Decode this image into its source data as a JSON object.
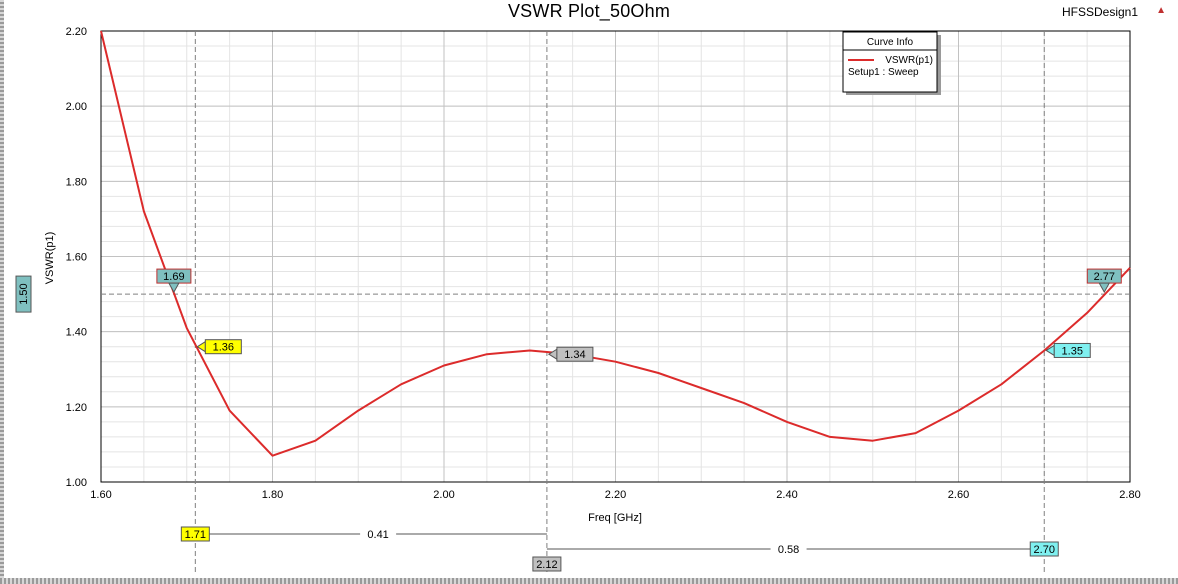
{
  "header": {
    "title": "VSWR Plot_50Ohm",
    "design": "HFSSDesign1"
  },
  "legend": {
    "title": "Curve Info",
    "entry": "VSWR(p1)",
    "sub": "Setup1 : Sweep"
  },
  "chart_data": {
    "type": "line",
    "title": "VSWR Plot_50Ohm",
    "xlabel": "Freq [GHz]",
    "ylabel": "VSWR(p1)",
    "xlim": [
      1.6,
      2.8
    ],
    "ylim": [
      1.0,
      2.2
    ],
    "x_ticks": [
      "1.60",
      "1.80",
      "2.00",
      "2.20",
      "2.40",
      "2.60",
      "2.80"
    ],
    "y_ticks": [
      "1.00",
      "1.20",
      "1.40",
      "1.60",
      "1.80",
      "2.00",
      "2.20"
    ],
    "grid": true,
    "legend_position": "top-right",
    "series": [
      {
        "name": "VSWR(p1)",
        "color": "#dc2b2b",
        "x": [
          1.6,
          1.65,
          1.7,
          1.75,
          1.8,
          1.85,
          1.9,
          1.95,
          2.0,
          2.05,
          2.1,
          2.15,
          2.2,
          2.25,
          2.3,
          2.35,
          2.4,
          2.45,
          2.5,
          2.55,
          2.6,
          2.65,
          2.7,
          2.75,
          2.8
        ],
        "y": [
          2.2,
          1.72,
          1.41,
          1.19,
          1.07,
          1.11,
          1.19,
          1.26,
          1.31,
          1.34,
          1.35,
          1.34,
          1.32,
          1.29,
          1.25,
          1.21,
          1.16,
          1.12,
          1.11,
          1.13,
          1.19,
          1.26,
          1.35,
          1.45,
          1.57
        ]
      }
    ],
    "markers": {
      "horizontal_line": {
        "value": 1.5,
        "label": "1.50"
      },
      "vertical_lines": [
        {
          "x": 1.71,
          "label": "1.71",
          "color": "#ffff00"
        },
        {
          "x": 2.12,
          "label": "2.12",
          "color": "#c0c0c0"
        },
        {
          "x": 2.7,
          "label": "2.70",
          "color": "#7ff0f0"
        }
      ],
      "point_labels": [
        {
          "x": 1.685,
          "y": 1.5,
          "text": "1.69",
          "color": "#7fc0c0",
          "style": "top"
        },
        {
          "x": 1.71,
          "y": 1.36,
          "text": "1.36",
          "color": "#ffff00",
          "style": "right"
        },
        {
          "x": 2.12,
          "y": 1.34,
          "text": "1.34",
          "color": "#c0c0c0",
          "style": "right"
        },
        {
          "x": 2.7,
          "y": 1.35,
          "text": "1.35",
          "color": "#7ff0f0",
          "style": "right"
        },
        {
          "x": 2.77,
          "y": 1.5,
          "text": "2.77",
          "color": "#7fc0c0",
          "style": "top"
        }
      ],
      "deltas": [
        {
          "from": 1.71,
          "to": 2.12,
          "text": "0.41",
          "row": 1
        },
        {
          "from": 2.12,
          "to": 2.7,
          "text": "0.58",
          "row": 2
        }
      ]
    }
  }
}
